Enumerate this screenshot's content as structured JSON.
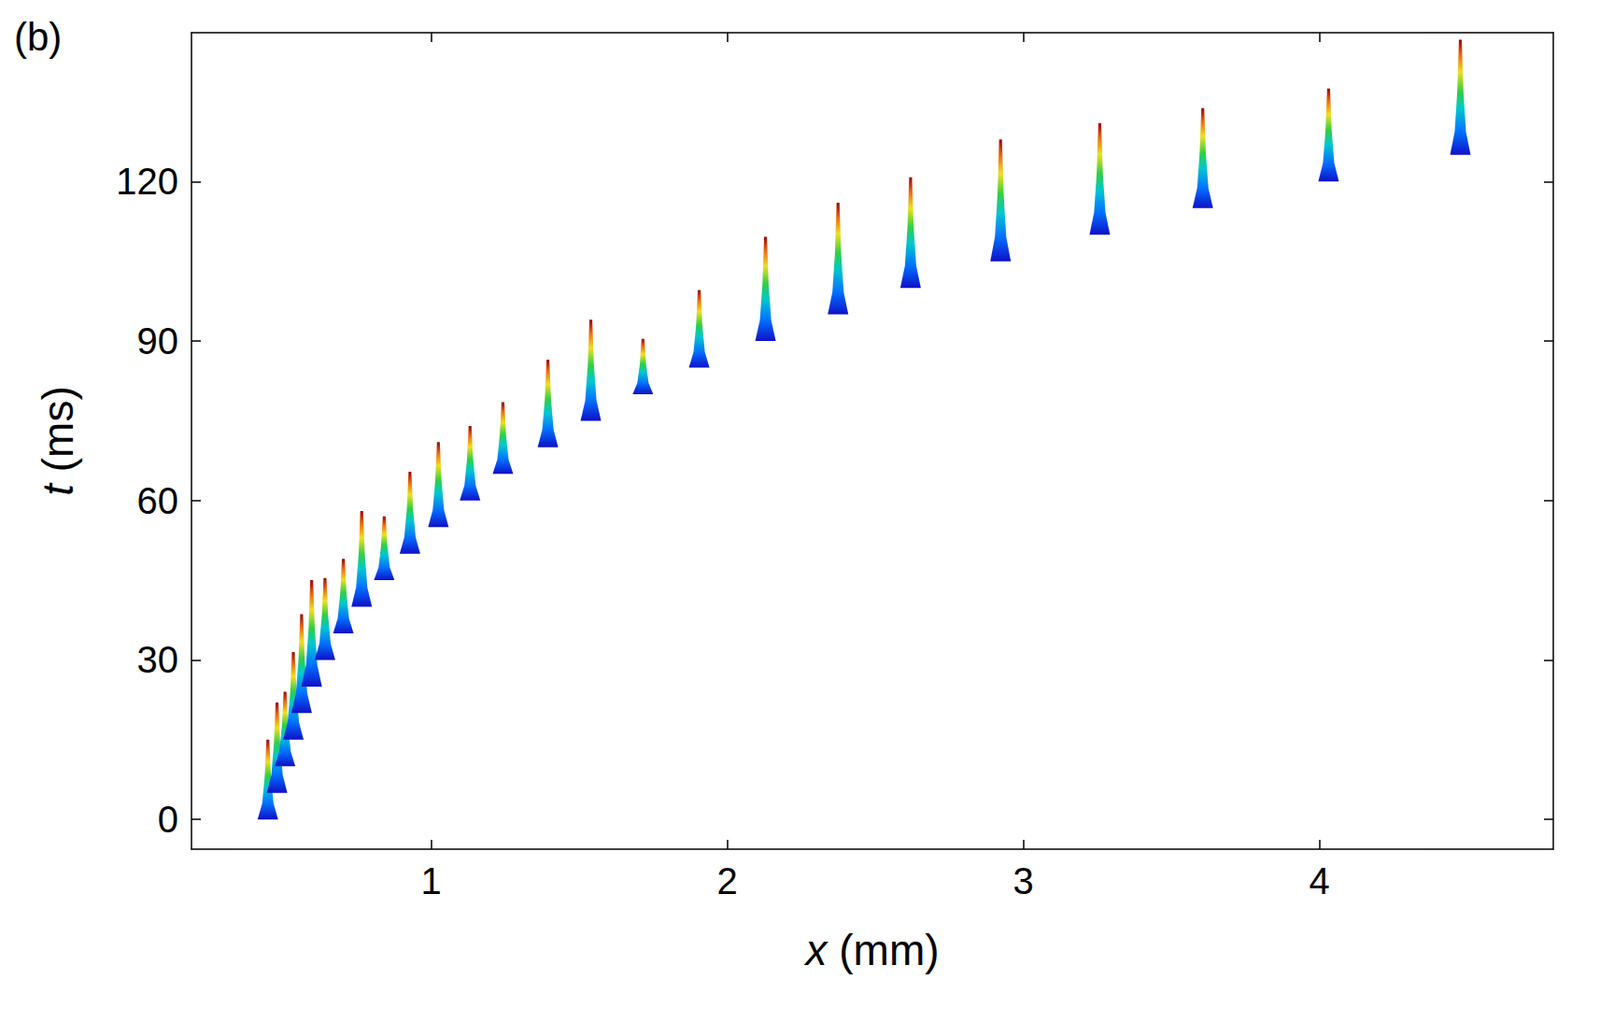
{
  "chart_data": {
    "type": "spike",
    "panel_label": "(b)",
    "x_label": "x (mm)",
    "y_label": "t (ms)",
    "x": [
      0.448,
      0.479,
      0.506,
      0.534,
      0.562,
      0.596,
      0.641,
      0.703,
      0.765,
      0.841,
      0.928,
      1.024,
      1.131,
      1.242,
      1.394,
      1.539,
      1.715,
      1.905,
      2.129,
      2.374,
      2.619,
      2.923,
      3.258,
      3.606,
      4.031,
      4.476
    ],
    "y": [
      0,
      5,
      10,
      15,
      20,
      25,
      30,
      35,
      40,
      45,
      50,
      55,
      60,
      65,
      70,
      75,
      80,
      85,
      90,
      95,
      100,
      105,
      110,
      115,
      120,
      125
    ],
    "peak_height": [
      15,
      17,
      14,
      16.5,
      18.6,
      20,
      15.4,
      14,
      18,
      12,
      15.4,
      16,
      14,
      13.5,
      16.5,
      19,
      10.4,
      14.6,
      19.6,
      21,
      20.8,
      22.9,
      21,
      18.8,
      17.5,
      21.7
    ],
    "xlim": [
      0.19,
      4.79
    ],
    "ylim": [
      -5.6,
      148
    ],
    "xticks": [
      1,
      2,
      3,
      4
    ],
    "yticks": [
      0,
      30,
      60,
      90,
      120
    ],
    "grid": false
  }
}
